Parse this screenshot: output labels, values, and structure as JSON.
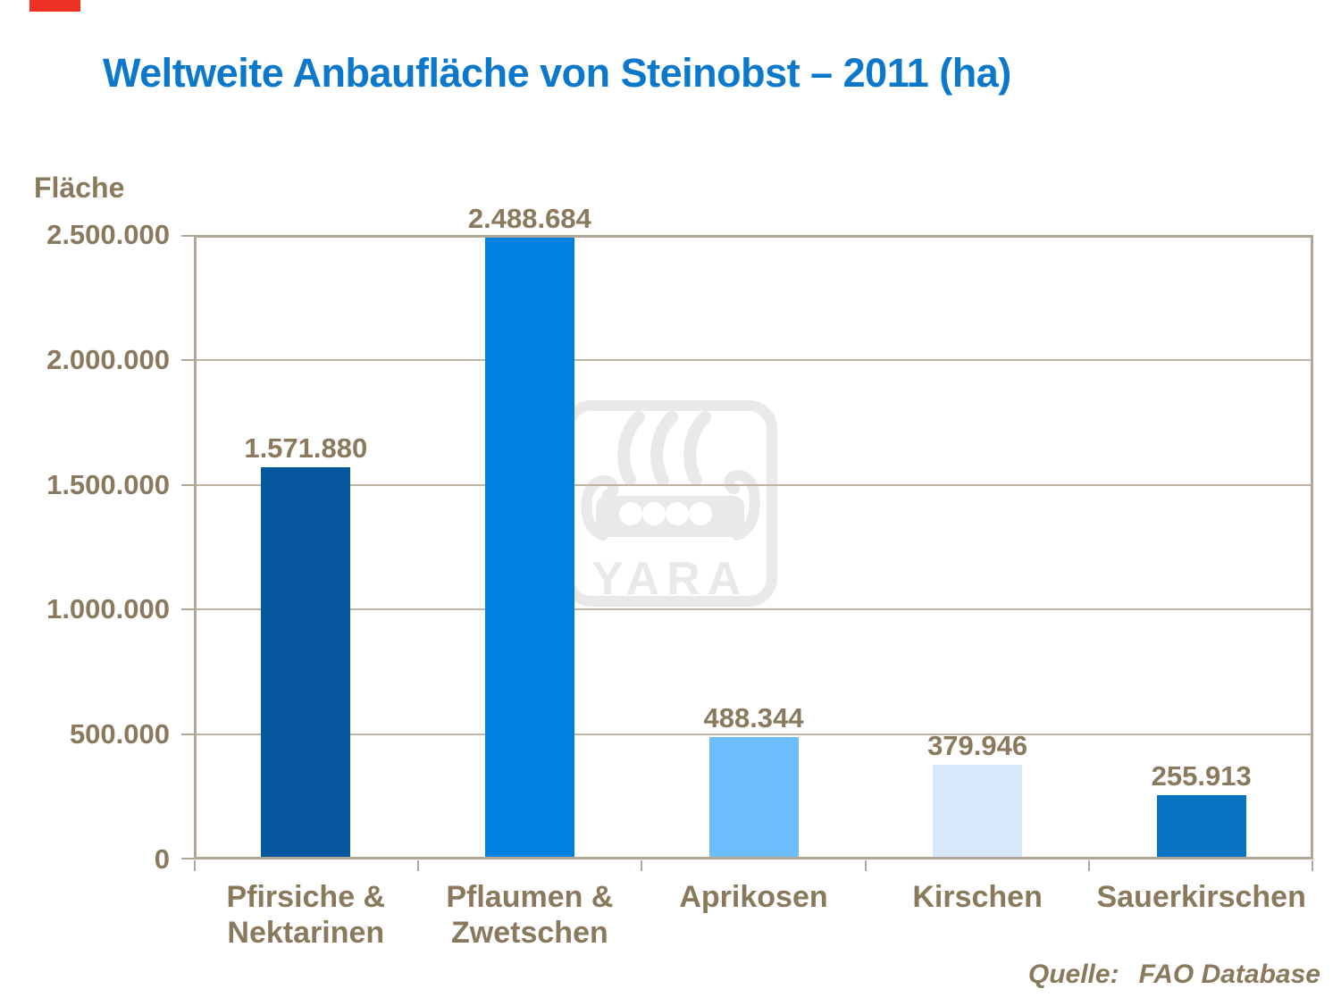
{
  "slide": {
    "title": "Weltweite Anbaufläche von Steinobst – 2011 (ha)",
    "source_prefix": "Quelle:",
    "source_text": "FAO Database"
  },
  "colors": {
    "title_blue": "#0B78CC",
    "text_brown": "#8A795D",
    "axis_tan": "#B2A696",
    "grid_tan": "#BFB3A4",
    "accent_red": "#EE3124",
    "watermark_gray": "#E9E9EB",
    "background": "#FFFFFF"
  },
  "watermark": {
    "name": "yara-logo",
    "text": "YARA"
  },
  "chart_data": {
    "type": "bar",
    "title": "Weltweite Anbaufläche von Steinobst – 2011 (ha)",
    "ylabel": "Fläche",
    "xlabel": "",
    "categories": [
      "Pfirsiche &\nNektarinen",
      "Pflaumen &\nZwetschen",
      "Aprikosen",
      "Kirschen",
      "Sauerkirschen"
    ],
    "values": [
      1571880,
      2488684,
      488344,
      379946,
      255913
    ],
    "value_labels": [
      "1.571.880",
      "2.488.684",
      "488.344",
      "379.946",
      "255.913"
    ],
    "bar_colors": [
      "#07589E",
      "#0081E0",
      "#6CBDFB",
      "#D7E8FA",
      "#0A74C4"
    ],
    "ylim": [
      0,
      2500000
    ],
    "ytick_values": [
      0,
      500000,
      1000000,
      1500000,
      2000000,
      2500000
    ],
    "ytick_labels": [
      "0",
      "500.000",
      "1.000.000",
      "1.500.000",
      "2.000.000",
      "2.500.000"
    ],
    "grid": true,
    "legend_position": "none"
  }
}
